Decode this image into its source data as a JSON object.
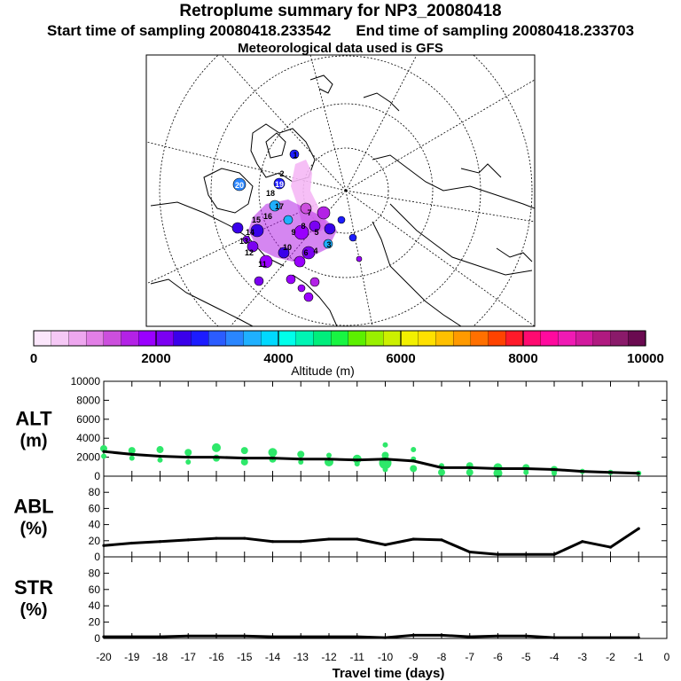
{
  "header": {
    "title": "Retroplume summary for NP3_20080418",
    "start_label": "Start time of sampling 20080418.233542",
    "end_label": "End time of sampling 20080418.233703",
    "met_label": "Meteorological data used is GFS"
  },
  "colors": {
    "axis": "#000000",
    "line": "#000000",
    "dots": "#2ee86a",
    "background": "#ffffff"
  },
  "map": {
    "projection": "polar-stereographic",
    "labels": [
      "20",
      "19",
      "18",
      "17",
      "16",
      "15",
      "14",
      "13",
      "12",
      "11",
      "10",
      "9",
      "8",
      "7",
      "6",
      "5",
      "4",
      "3",
      "2",
      "1"
    ]
  },
  "colorbar": {
    "colors": [
      "#fbe6fb",
      "#f5c8f5",
      "#eea7ef",
      "#e27fe6",
      "#cc4fdd",
      "#b322e6",
      "#9a00ff",
      "#7b00f2",
      "#3a00ea",
      "#1c1cff",
      "#2b5cff",
      "#2a86ff",
      "#1fb0ff",
      "#00d9ff",
      "#00ffea",
      "#00f5b4",
      "#00ee7c",
      "#18f542",
      "#5cf000",
      "#9af000",
      "#ccf000",
      "#f2f000",
      "#ffe000",
      "#ffc000",
      "#ff9a00",
      "#ff7000",
      "#ff4300",
      "#ff1a2a",
      "#ff0a70",
      "#ff0a9e",
      "#f01ab4",
      "#d21a9e",
      "#b01a80",
      "#8a1a6a",
      "#6a0a50"
    ],
    "ticks": [
      "0",
      "2000",
      "4000",
      "6000",
      "8000",
      "10000"
    ],
    "tick_values": [
      0,
      2000,
      4000,
      6000,
      8000,
      10000
    ],
    "range": [
      0,
      10000
    ],
    "label": "Altitude (m)"
  },
  "chart_data": [
    {
      "type": "line",
      "name": "ALT",
      "panel_label": "ALT",
      "panel_unit": "(m)",
      "x": [
        -20,
        -19,
        -18,
        -17,
        -16,
        -15,
        -14,
        -13,
        -12,
        -11,
        -10,
        -9,
        -8,
        -7,
        -6,
        -5,
        -4,
        -3,
        -2,
        -1
      ],
      "values": [
        2600,
        2300,
        2100,
        2000,
        2000,
        1900,
        1900,
        1800,
        1800,
        1700,
        1800,
        1600,
        900,
        900,
        800,
        800,
        700,
        500,
        400,
        300
      ],
      "scatter": [
        {
          "x": -20,
          "y": 2900,
          "s": 4
        },
        {
          "x": -20,
          "y": 2100,
          "s": 3
        },
        {
          "x": -19,
          "y": 2700,
          "s": 4
        },
        {
          "x": -19,
          "y": 1900,
          "s": 3
        },
        {
          "x": -18,
          "y": 2800,
          "s": 4
        },
        {
          "x": -18,
          "y": 1700,
          "s": 3
        },
        {
          "x": -17,
          "y": 2500,
          "s": 4
        },
        {
          "x": -17,
          "y": 1500,
          "s": 3
        },
        {
          "x": -16,
          "y": 3000,
          "s": 5
        },
        {
          "x": -16,
          "y": 1900,
          "s": 4
        },
        {
          "x": -15,
          "y": 2700,
          "s": 4
        },
        {
          "x": -15,
          "y": 1500,
          "s": 4
        },
        {
          "x": -14,
          "y": 2500,
          "s": 5
        },
        {
          "x": -14,
          "y": 1800,
          "s": 4
        },
        {
          "x": -13,
          "y": 2300,
          "s": 4
        },
        {
          "x": -13,
          "y": 1500,
          "s": 3
        },
        {
          "x": -12,
          "y": 2200,
          "s": 3
        },
        {
          "x": -12,
          "y": 1500,
          "s": 5
        },
        {
          "x": -11,
          "y": 1800,
          "s": 5
        },
        {
          "x": -11,
          "y": 1300,
          "s": 3
        },
        {
          "x": -10,
          "y": 3300,
          "s": 3
        },
        {
          "x": -10,
          "y": 2200,
          "s": 4
        },
        {
          "x": -10,
          "y": 1400,
          "s": 7
        },
        {
          "x": -10,
          "y": 700,
          "s": 3
        },
        {
          "x": -9,
          "y": 2800,
          "s": 3
        },
        {
          "x": -9,
          "y": 1800,
          "s": 3
        },
        {
          "x": -9,
          "y": 800,
          "s": 4
        },
        {
          "x": -8,
          "y": 1100,
          "s": 3
        },
        {
          "x": -8,
          "y": 400,
          "s": 4
        },
        {
          "x": -7,
          "y": 1100,
          "s": 4
        },
        {
          "x": -7,
          "y": 400,
          "s": 4
        },
        {
          "x": -6,
          "y": 900,
          "s": 5
        },
        {
          "x": -6,
          "y": 300,
          "s": 5
        },
        {
          "x": -5,
          "y": 900,
          "s": 4
        },
        {
          "x": -5,
          "y": 400,
          "s": 3
        },
        {
          "x": -4,
          "y": 700,
          "s": 4
        },
        {
          "x": -4,
          "y": 300,
          "s": 3
        },
        {
          "x": -3,
          "y": 500,
          "s": 3
        },
        {
          "x": -2,
          "y": 400,
          "s": 3
        },
        {
          "x": -1,
          "y": 300,
          "s": 3
        }
      ],
      "ylim": [
        0,
        10000
      ],
      "yticks": [
        "0",
        "2000",
        "4000",
        "6000",
        "8000",
        "10000"
      ],
      "ytick_values": [
        0,
        2000,
        4000,
        6000,
        8000,
        10000
      ]
    },
    {
      "type": "line",
      "name": "ABL",
      "panel_label": "ABL",
      "panel_unit": "(%)",
      "x": [
        -20,
        -19,
        -18,
        -17,
        -16,
        -15,
        -14,
        -13,
        -12,
        -11,
        -10,
        -9,
        -8,
        -7,
        -6,
        -5,
        -4,
        -3,
        -2,
        -1
      ],
      "values": [
        14,
        17,
        19,
        21,
        23,
        23,
        19,
        19,
        22,
        22,
        15,
        22,
        21,
        6,
        3,
        3,
        3,
        19,
        12,
        35
      ],
      "ylim": [
        0,
        100
      ],
      "yticks": [
        "0",
        "20",
        "40",
        "60",
        "80"
      ],
      "ytick_values": [
        0,
        20,
        40,
        60,
        80
      ]
    },
    {
      "type": "line",
      "name": "STR",
      "panel_label": "STR",
      "panel_unit": "(%)",
      "x": [
        -20,
        -19,
        -18,
        -17,
        -16,
        -15,
        -14,
        -13,
        -12,
        -11,
        -10,
        -9,
        -8,
        -7,
        -6,
        -5,
        -4,
        -3,
        -2,
        -1
      ],
      "values": [
        2,
        2,
        2,
        3,
        3,
        3,
        2,
        2,
        2,
        2,
        1,
        4,
        4,
        2,
        3,
        3,
        1,
        1,
        1,
        1
      ],
      "ylim": [
        0,
        100
      ],
      "yticks": [
        "0",
        "20",
        "40",
        "60",
        "80"
      ],
      "ytick_values": [
        0,
        20,
        40,
        60,
        80
      ]
    }
  ],
  "xaxis": {
    "ticks": [
      "-20",
      "-19",
      "-18",
      "-17",
      "-16",
      "-15",
      "-14",
      "-13",
      "-12",
      "-11",
      "-10",
      "-9",
      "-8",
      "-7",
      "-6",
      "-5",
      "-4",
      "-3",
      "-2",
      "-1",
      "0"
    ],
    "tick_values": [
      -20,
      -19,
      -18,
      -17,
      -16,
      -15,
      -14,
      -13,
      -12,
      -11,
      -10,
      -9,
      -8,
      -7,
      -6,
      -5,
      -4,
      -3,
      -2,
      -1,
      0
    ],
    "range": [
      -20,
      0
    ],
    "label": "Travel time (days)"
  }
}
